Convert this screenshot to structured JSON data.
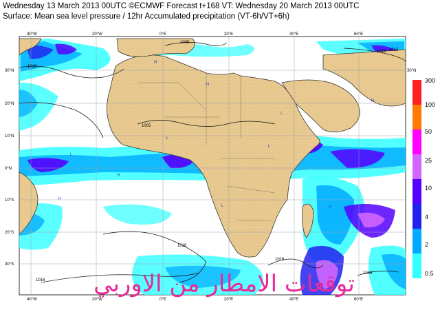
{
  "header": {
    "line1": "Wednesday 13 March 2013 00UTC ©ECMWF Forecast t+168 VT: Wednesday 20 March 2013 00UTC",
    "line2": "Surface: Mean sea level pressure / 12hr Accumulated precipitation (VT-6h/VT+6h)"
  },
  "map": {
    "lon_ticks": [
      "40°W",
      "20°W",
      "0°E",
      "20°E",
      "40°E",
      "60°E"
    ],
    "lat_ticks": [
      "30°N",
      "20°N",
      "10°N",
      "0°N",
      "10°S",
      "20°S",
      "30°S"
    ],
    "isobar_labels": [
      "1016",
      "1005",
      "1005",
      "1016",
      "1016",
      "1016",
      "1015",
      "1016",
      "1023"
    ],
    "colors": {
      "ocean": "#ffffff",
      "land": "#e8c98f",
      "coast": "#333333",
      "grid": "#9aa0a8",
      "isobar": "#1a1a1a"
    }
  },
  "legend": {
    "levels": [
      "300",
      "100",
      "50",
      "25",
      "10",
      "4",
      "2",
      "0.5"
    ],
    "colors": [
      "#ff2020",
      "#ff7a00",
      "#ff00ff",
      "#d066ff",
      "#5500ff",
      "#2222ee",
      "#00aaff",
      "#33ffff"
    ]
  },
  "watermark": "توقعات الامطار من الاوربي"
}
